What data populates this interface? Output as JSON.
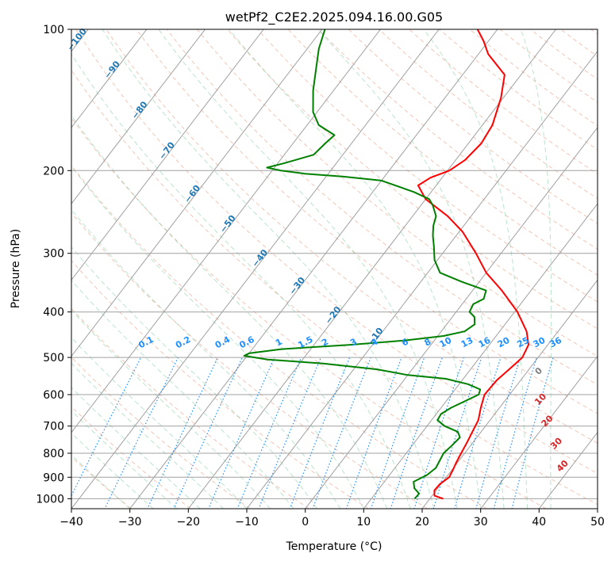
{
  "chart_data": {
    "type": "line",
    "title": "wetPf2_C2E2.2025.094.16.00.G05",
    "xlabel": "Temperature (°C)",
    "ylabel": "Pressure (hPa)",
    "xlim": [
      -40,
      50
    ],
    "ylim": [
      1050,
      100
    ],
    "y_scale": "log",
    "x_ticks": [
      "−40",
      "−30",
      "−20",
      "−10",
      "0",
      "10",
      "20",
      "30",
      "40",
      "50"
    ],
    "y_ticks": [
      "100",
      "200",
      "300",
      "400",
      "500",
      "600",
      "700",
      "800",
      "900",
      "1000"
    ],
    "grid": true,
    "series": [
      {
        "role": "temperature",
        "color": "#ff0000",
        "points": [
          [
            1000,
            22.3
          ],
          [
            985,
            20.4
          ],
          [
            960,
            19.7
          ],
          [
            930,
            19.8
          ],
          [
            900,
            20.5
          ],
          [
            870,
            20.2
          ],
          [
            840,
            19.8
          ],
          [
            800,
            19.4
          ],
          [
            760,
            19.0
          ],
          [
            720,
            18.5
          ],
          [
            680,
            18.0
          ],
          [
            640,
            16.8
          ],
          [
            600,
            15.7
          ],
          [
            560,
            15.9
          ],
          [
            530,
            16.6
          ],
          [
            500,
            17.3
          ],
          [
            470,
            16.7
          ],
          [
            440,
            14.6
          ],
          [
            400,
            10.5
          ],
          [
            360,
            5.0
          ],
          [
            330,
            0.0
          ],
          [
            300,
            -4.3
          ],
          [
            270,
            -9.4
          ],
          [
            250,
            -14.0
          ],
          [
            230,
            -20.0
          ],
          [
            215,
            -23.1
          ],
          [
            207,
            -22.0
          ],
          [
            200,
            -19.7
          ],
          [
            190,
            -18.4
          ],
          [
            175,
            -17.8
          ],
          [
            160,
            -18.3
          ],
          [
            140,
            -20.4
          ],
          [
            125,
            -22.8
          ],
          [
            113,
            -28.3
          ],
          [
            106,
            -30.8
          ],
          [
            100,
            -33.4
          ]
        ]
      },
      {
        "role": "dewpoint",
        "color": "#008000",
        "points": [
          [
            1000,
            17.4
          ],
          [
            975,
            17.5
          ],
          [
            950,
            16.0
          ],
          [
            920,
            15.0
          ],
          [
            890,
            16.4
          ],
          [
            860,
            17.0
          ],
          [
            830,
            16.7
          ],
          [
            800,
            16.4
          ],
          [
            770,
            16.8
          ],
          [
            740,
            17.1
          ],
          [
            720,
            16.0
          ],
          [
            700,
            13.0
          ],
          [
            680,
            11.0
          ],
          [
            660,
            10.8
          ],
          [
            640,
            11.7
          ],
          [
            620,
            13.2
          ],
          [
            600,
            14.7
          ],
          [
            585,
            14.3
          ],
          [
            570,
            11.5
          ],
          [
            555,
            7.0
          ],
          [
            545,
            0.0
          ],
          [
            530,
            -6.0
          ],
          [
            515,
            -16.0
          ],
          [
            505,
            -26.0
          ],
          [
            496,
            -30.5
          ],
          [
            490,
            -30.0
          ],
          [
            480,
            -25.0
          ],
          [
            470,
            -14.0
          ],
          [
            460,
            -5.0
          ],
          [
            450,
            1.0
          ],
          [
            440,
            4.0
          ],
          [
            425,
            4.8
          ],
          [
            410,
            3.8
          ],
          [
            400,
            2.3
          ],
          [
            385,
            1.9
          ],
          [
            375,
            3.0
          ],
          [
            360,
            2.3
          ],
          [
            345,
            -3.0
          ],
          [
            330,
            -7.9
          ],
          [
            310,
            -10.5
          ],
          [
            290,
            -12.4
          ],
          [
            275,
            -14.0
          ],
          [
            262,
            -15.2
          ],
          [
            250,
            -16.0
          ],
          [
            237,
            -18.0
          ],
          [
            230,
            -19.4
          ],
          [
            222,
            -23.0
          ],
          [
            210,
            -30.0
          ],
          [
            206,
            -37.0
          ],
          [
            203,
            -44.0
          ],
          [
            200,
            -48.5
          ],
          [
            197,
            -51.3
          ],
          [
            193,
            -49.0
          ],
          [
            185,
            -45.0
          ],
          [
            175,
            -44.5
          ],
          [
            168,
            -44.0
          ],
          [
            160,
            -48.0
          ],
          [
            150,
            -50.7
          ],
          [
            135,
            -53.5
          ],
          [
            120,
            -56.1
          ],
          [
            110,
            -58.0
          ],
          [
            100,
            -59.5
          ]
        ]
      }
    ],
    "dry_adiabat_labels": [
      "−100",
      "−90",
      "−80",
      "−70",
      "−60",
      "−50",
      "−40",
      "−30",
      "−20",
      "−10"
    ],
    "mixing_ratio_labels": [
      "0.1",
      "0.2",
      "0.4",
      "0.6",
      "1",
      "1.5",
      "2",
      "3",
      "4",
      "6",
      "8",
      "10",
      "13",
      "16",
      "20",
      "25",
      "30",
      "36"
    ],
    "moist_adiabat_labels": [
      "0",
      "10",
      "20",
      "30",
      "40"
    ],
    "colors": {
      "temperature": "#ff0000",
      "dewpoint": "#008000",
      "dry_adiabat": "#e9967a",
      "moist_adiabat": "#3cb371",
      "mixing_ratio": "#1e90ff",
      "dry_label": "#1f77b4",
      "moist_label": "#d62728",
      "grid": "#a0a0a0"
    }
  }
}
